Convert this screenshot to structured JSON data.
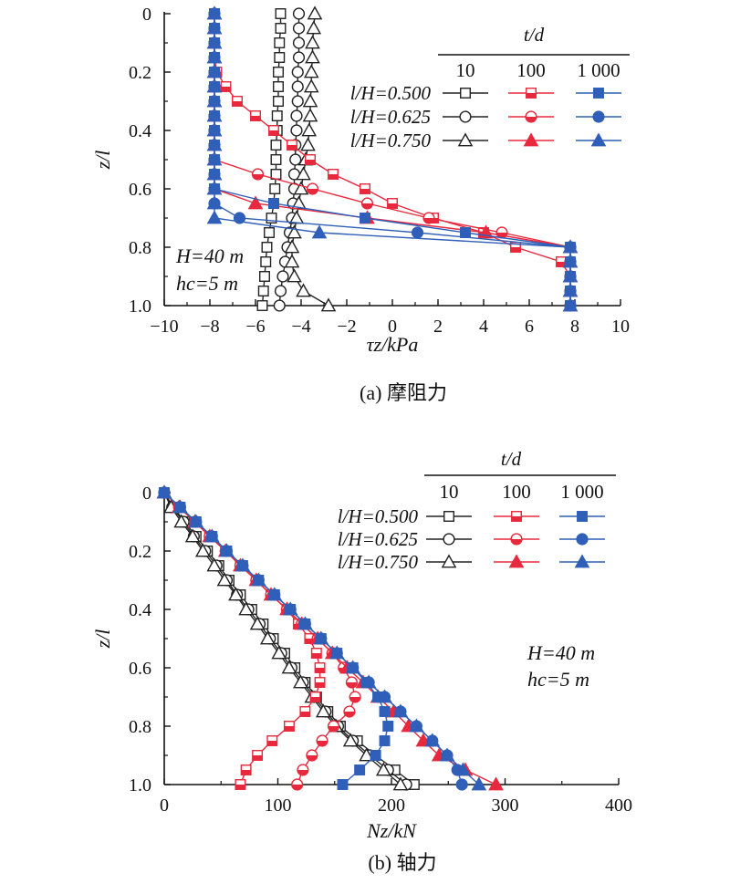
{
  "styles": {
    "black": "#222222",
    "red": "#e8283c",
    "blue": "#2f5fb8"
  },
  "chart_data": [
    {
      "id": "a",
      "type": "line",
      "caption": "(a) 摩阻力",
      "xlabel": "τz/kPa",
      "ylabel": "z/l",
      "xlim": [
        -10,
        10
      ],
      "ylim": [
        0,
        1.0
      ],
      "y_inverted": true,
      "x_ticks": [
        "−10",
        "−8",
        "−6",
        "−4",
        "−2",
        "0",
        "2",
        "4",
        "6",
        "8",
        "10"
      ],
      "y_ticks": [
        "0",
        "0.2",
        "0.4",
        "0.6",
        "0.8",
        "1.0"
      ],
      "legend": {
        "title": "t/d",
        "columns": [
          "10",
          "100",
          "1 000"
        ],
        "rows": [
          "l/H=0.500",
          "l/H=0.625",
          "l/H=0.750"
        ]
      },
      "annotations": [
        "H=40 m",
        "hc=5 m"
      ],
      "series": [
        {
          "name": "l/H=0.500, t/d=10",
          "color": "black",
          "marker": "square",
          "fill": "open",
          "z": [
            0,
            0.05,
            0.1,
            0.15,
            0.2,
            0.25,
            0.3,
            0.35,
            0.4,
            0.45,
            0.5,
            0.55,
            0.6,
            0.65,
            0.7,
            0.75,
            0.8,
            0.85,
            0.9,
            0.95,
            1.0
          ],
          "x": [
            -4.9,
            -4.9,
            -4.95,
            -4.95,
            -5.0,
            -5.0,
            -5.0,
            -5.05,
            -5.05,
            -5.1,
            -5.1,
            -5.1,
            -5.15,
            -5.2,
            -5.3,
            -5.4,
            -5.5,
            -5.55,
            -5.6,
            -5.65,
            -5.7
          ]
        },
        {
          "name": "l/H=0.625, t/d=10",
          "color": "black",
          "marker": "circle",
          "fill": "open",
          "z": [
            0,
            0.05,
            0.1,
            0.15,
            0.2,
            0.25,
            0.3,
            0.35,
            0.4,
            0.45,
            0.5,
            0.55,
            0.6,
            0.65,
            0.7,
            0.75,
            0.8,
            0.85,
            0.9,
            0.95,
            1.0
          ],
          "x": [
            -4.1,
            -4.1,
            -4.1,
            -4.1,
            -4.15,
            -4.15,
            -4.15,
            -4.2,
            -4.2,
            -4.25,
            -4.25,
            -4.3,
            -4.3,
            -4.35,
            -4.4,
            -4.5,
            -4.6,
            -4.7,
            -4.8,
            -4.9,
            -4.95
          ]
        },
        {
          "name": "l/H=0.750, t/d=10",
          "color": "black",
          "marker": "triangle",
          "fill": "open",
          "z": [
            0,
            0.05,
            0.1,
            0.15,
            0.2,
            0.25,
            0.3,
            0.35,
            0.4,
            0.45,
            0.5,
            0.55,
            0.6,
            0.65,
            0.7,
            0.75,
            0.8,
            0.85,
            0.9,
            0.95,
            1.0
          ],
          "x": [
            -3.4,
            -3.45,
            -3.5,
            -3.5,
            -3.55,
            -3.55,
            -3.6,
            -3.6,
            -3.65,
            -3.7,
            -3.8,
            -3.9,
            -4.0,
            -4.1,
            -4.2,
            -4.3,
            -4.4,
            -4.4,
            -4.3,
            -3.9,
            -2.8
          ]
        },
        {
          "name": "l/H=0.500, t/d=100",
          "color": "red",
          "marker": "square",
          "fill": "half",
          "z": [
            0,
            0.05,
            0.1,
            0.15,
            0.2,
            0.25,
            0.3,
            0.35,
            0.4,
            0.45,
            0.5,
            0.55,
            0.6,
            0.65,
            0.7,
            0.75,
            0.8,
            0.85,
            0.9,
            0.95,
            1.0
          ],
          "x": [
            -7.8,
            -7.8,
            -7.8,
            -7.8,
            -7.7,
            -7.3,
            -6.8,
            -6.0,
            -5.2,
            -4.4,
            -3.6,
            -2.6,
            -1.2,
            0.0,
            1.8,
            4.0,
            5.4,
            7.4,
            7.8,
            7.8,
            7.8
          ]
        },
        {
          "name": "l/H=0.625, t/d=100",
          "color": "red",
          "marker": "circle",
          "fill": "half",
          "z": [
            0,
            0.05,
            0.1,
            0.15,
            0.2,
            0.25,
            0.3,
            0.35,
            0.4,
            0.45,
            0.5,
            0.55,
            0.6,
            0.65,
            0.7,
            0.75,
            0.8,
            0.85,
            0.9,
            0.95,
            1.0
          ],
          "x": [
            -7.8,
            -7.8,
            -7.8,
            -7.8,
            -7.8,
            -7.8,
            -7.8,
            -7.8,
            -7.8,
            -7.8,
            -7.8,
            -5.9,
            -3.5,
            -1.1,
            1.6,
            4.8,
            7.8,
            7.8,
            7.8,
            7.8,
            7.8
          ]
        },
        {
          "name": "l/H=0.750, t/d=100",
          "color": "red",
          "marker": "triangle",
          "fill": "filled",
          "z": [
            0,
            0.05,
            0.1,
            0.15,
            0.2,
            0.25,
            0.3,
            0.35,
            0.4,
            0.45,
            0.5,
            0.55,
            0.6,
            0.65,
            0.7,
            0.75,
            0.8,
            0.85,
            0.9,
            0.95,
            1.0
          ],
          "x": [
            -7.8,
            -7.8,
            -7.8,
            -7.8,
            -7.8,
            -7.8,
            -7.8,
            -7.8,
            -7.8,
            -7.8,
            -7.8,
            -7.8,
            -7.8,
            -6.0,
            -1.1,
            4.1,
            7.8,
            7.8,
            7.8,
            7.8,
            7.8
          ]
        },
        {
          "name": "l/H=0.500, t/d=1 000",
          "color": "blue",
          "marker": "square",
          "fill": "filled",
          "z": [
            0,
            0.05,
            0.1,
            0.15,
            0.2,
            0.25,
            0.3,
            0.35,
            0.4,
            0.45,
            0.5,
            0.55,
            0.6,
            0.65,
            0.7,
            0.75,
            0.8,
            0.85,
            0.9,
            0.95,
            1.0
          ],
          "x": [
            -7.8,
            -7.8,
            -7.8,
            -7.8,
            -7.8,
            -7.8,
            -7.8,
            -7.8,
            -7.8,
            -7.8,
            -7.8,
            -7.8,
            -7.8,
            -5.2,
            -1.2,
            3.2,
            7.8,
            7.8,
            7.8,
            7.8,
            7.8
          ]
        },
        {
          "name": "l/H=0.625, t/d=1 000",
          "color": "blue",
          "marker": "circle",
          "fill": "filled",
          "z": [
            0,
            0.05,
            0.1,
            0.15,
            0.2,
            0.25,
            0.3,
            0.35,
            0.4,
            0.45,
            0.5,
            0.55,
            0.6,
            0.65,
            0.7,
            0.75,
            0.8,
            0.85,
            0.9,
            0.95,
            1.0
          ],
          "x": [
            -7.8,
            -7.8,
            -7.8,
            -7.8,
            -7.8,
            -7.8,
            -7.8,
            -7.8,
            -7.8,
            -7.8,
            -7.8,
            -7.8,
            -7.8,
            -7.8,
            -6.7,
            1.1,
            7.8,
            7.8,
            7.8,
            7.8,
            7.8
          ]
        },
        {
          "name": "l/H=0.750, t/d=1 000",
          "color": "blue",
          "marker": "triangle",
          "fill": "filled",
          "z": [
            0,
            0.05,
            0.1,
            0.15,
            0.2,
            0.25,
            0.3,
            0.35,
            0.4,
            0.45,
            0.5,
            0.55,
            0.6,
            0.65,
            0.7,
            0.75,
            0.8,
            0.85,
            0.9,
            0.95,
            1.0
          ],
          "x": [
            -7.8,
            -7.8,
            -7.8,
            -7.8,
            -7.8,
            -7.8,
            -7.8,
            -7.8,
            -7.8,
            -7.8,
            -7.8,
            -7.8,
            -7.8,
            -7.8,
            -7.8,
            -3.2,
            7.8,
            7.8,
            7.8,
            7.8,
            7.8
          ]
        }
      ]
    },
    {
      "id": "b",
      "type": "line",
      "caption": "(b) 轴力",
      "xlabel": "Nz/kN",
      "ylabel": "z/l",
      "xlim": [
        0,
        400
      ],
      "ylim": [
        0,
        1.0
      ],
      "y_inverted": true,
      "x_ticks": [
        "0",
        "100",
        "200",
        "300",
        "400"
      ],
      "y_ticks": [
        "0",
        "0.2",
        "0.4",
        "0.6",
        "0.8",
        "1.0"
      ],
      "legend": {
        "title": "t/d",
        "columns": [
          "10",
          "100",
          "1 000"
        ],
        "rows": [
          "l/H=0.500",
          "l/H=0.625",
          "l/H=0.750"
        ]
      },
      "annotations": [
        "H=40 m",
        "hc=5 m"
      ],
      "series": [
        {
          "name": "l/H=0.500, t/d=10",
          "color": "black",
          "marker": "square",
          "fill": "open",
          "z": [
            0,
            0.05,
            0.1,
            0.15,
            0.2,
            0.25,
            0.3,
            0.35,
            0.4,
            0.45,
            0.5,
            0.55,
            0.6,
            0.65,
            0.7,
            0.75,
            0.8,
            0.85,
            0.9,
            0.95,
            1.0
          ],
          "x": [
            0,
            8,
            18,
            28,
            38,
            48,
            57,
            67,
            77,
            87,
            96,
            106,
            115,
            124,
            134,
            144,
            155,
            170,
            186,
            203,
            220
          ]
        },
        {
          "name": "l/H=0.625, t/d=10",
          "color": "black",
          "marker": "circle",
          "fill": "open",
          "z": [
            0,
            0.05,
            0.1,
            0.15,
            0.2,
            0.25,
            0.3,
            0.35,
            0.4,
            0.45,
            0.5,
            0.55,
            0.6,
            0.65,
            0.7,
            0.75,
            0.8,
            0.85,
            0.9,
            0.95,
            1.0
          ],
          "x": [
            0,
            7,
            17,
            26,
            36,
            46,
            55,
            64,
            74,
            84,
            93,
            103,
            112,
            122,
            132,
            142,
            153,
            166,
            181,
            197,
            213
          ]
        },
        {
          "name": "l/H=0.750, t/d=10",
          "color": "black",
          "marker": "triangle",
          "fill": "open",
          "z": [
            0,
            0.05,
            0.1,
            0.15,
            0.2,
            0.25,
            0.3,
            0.35,
            0.4,
            0.45,
            0.5,
            0.55,
            0.6,
            0.65,
            0.7,
            0.75,
            0.8,
            0.85,
            0.9,
            0.95,
            1.0
          ],
          "x": [
            0,
            6,
            15,
            25,
            34,
            44,
            53,
            63,
            72,
            82,
            91,
            101,
            110,
            120,
            130,
            140,
            151,
            164,
            178,
            193,
            208
          ]
        },
        {
          "name": "l/H=0.500, t/d=100",
          "color": "red",
          "marker": "square",
          "fill": "half",
          "z": [
            0,
            0.05,
            0.1,
            0.15,
            0.2,
            0.25,
            0.3,
            0.35,
            0.4,
            0.45,
            0.5,
            0.55,
            0.6,
            0.65,
            0.7,
            0.75,
            0.8,
            0.85,
            0.9,
            0.95,
            1.0
          ],
          "x": [
            0,
            13,
            27,
            40,
            54,
            67,
            81,
            94,
            108,
            118,
            128,
            134,
            137,
            137,
            133,
            124,
            110,
            95,
            82,
            72,
            67
          ]
        },
        {
          "name": "l/H=0.625, t/d=100",
          "color": "red",
          "marker": "circle",
          "fill": "half",
          "z": [
            0,
            0.05,
            0.1,
            0.15,
            0.2,
            0.25,
            0.3,
            0.35,
            0.4,
            0.45,
            0.5,
            0.55,
            0.6,
            0.65,
            0.7,
            0.75,
            0.8,
            0.85,
            0.9,
            0.95,
            1.0
          ],
          "x": [
            0,
            13,
            27,
            40,
            54,
            67,
            81,
            94,
            108,
            121,
            135,
            148,
            158,
            165,
            168,
            163,
            149,
            139,
            130,
            122,
            117
          ]
        },
        {
          "name": "l/H=0.750, t/d=100",
          "color": "red",
          "marker": "triangle",
          "fill": "filled",
          "z": [
            0,
            0.05,
            0.1,
            0.15,
            0.2,
            0.25,
            0.3,
            0.35,
            0.4,
            0.45,
            0.5,
            0.55,
            0.6,
            0.65,
            0.7,
            0.75,
            0.8,
            0.85,
            0.9,
            0.95,
            1.0
          ],
          "x": [
            0,
            13,
            27,
            40,
            54,
            67,
            81,
            94,
            108,
            121,
            135,
            148,
            161,
            175,
            188,
            202,
            215,
            228,
            242,
            265,
            292
          ]
        },
        {
          "name": "l/H=0.500, t/d=1 000",
          "color": "blue",
          "marker": "square",
          "fill": "filled",
          "z": [
            0,
            0.05,
            0.1,
            0.15,
            0.2,
            0.25,
            0.3,
            0.35,
            0.4,
            0.45,
            0.5,
            0.55,
            0.6,
            0.65,
            0.7,
            0.75,
            0.8,
            0.85,
            0.9,
            0.95,
            1.0
          ],
          "x": [
            0,
            14,
            28,
            42,
            55,
            69,
            83,
            97,
            111,
            124,
            138,
            152,
            166,
            178,
            188,
            194,
            197,
            194,
            186,
            172,
            157
          ]
        },
        {
          "name": "l/H=0.625, t/d=1 000",
          "color": "blue",
          "marker": "circle",
          "fill": "filled",
          "z": [
            0,
            0.05,
            0.1,
            0.15,
            0.2,
            0.25,
            0.3,
            0.35,
            0.4,
            0.45,
            0.5,
            0.55,
            0.6,
            0.65,
            0.7,
            0.75,
            0.8,
            0.85,
            0.9,
            0.95,
            1.0
          ],
          "x": [
            0,
            14,
            28,
            42,
            55,
            69,
            83,
            97,
            111,
            124,
            138,
            152,
            166,
            180,
            194,
            208,
            222,
            236,
            249,
            258,
            262
          ]
        },
        {
          "name": "l/H=0.750, t/d=1 000",
          "color": "blue",
          "marker": "triangle",
          "fill": "filled",
          "z": [
            0,
            0.05,
            0.1,
            0.15,
            0.2,
            0.25,
            0.3,
            0.35,
            0.4,
            0.45,
            0.5,
            0.55,
            0.6,
            0.65,
            0.7,
            0.75,
            0.8,
            0.85,
            0.9,
            0.95,
            1.0
          ],
          "x": [
            0,
            14,
            28,
            42,
            55,
            69,
            83,
            97,
            111,
            124,
            138,
            152,
            166,
            180,
            194,
            208,
            222,
            236,
            249,
            263,
            277
          ]
        }
      ]
    }
  ]
}
